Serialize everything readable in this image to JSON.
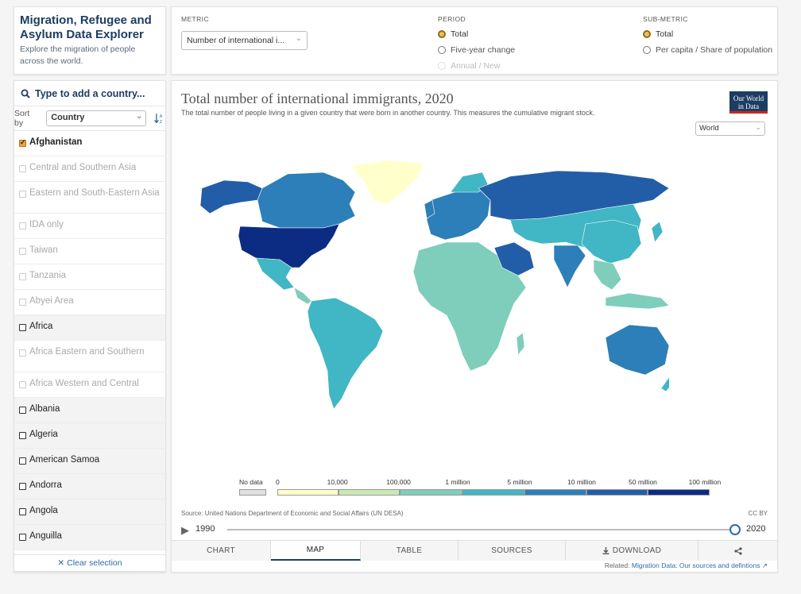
{
  "title_panel": {
    "title": "Migration, Refugee and Asylum Data Explorer",
    "description": "Explore the migration of people across the world."
  },
  "controls": {
    "metric_label": "METRIC",
    "metric_value": "Number of international i...",
    "period_label": "PERIOD",
    "period_options": [
      "Total",
      "Five-year change",
      "Annual / New"
    ],
    "submetric_label": "SUB-METRIC",
    "submetric_options": [
      "Total",
      "Per capita / Share of population"
    ]
  },
  "sidebar": {
    "search_placeholder": "Type to add a country...",
    "sort_label": "Sort by",
    "sort_value": "Country",
    "entities": [
      {
        "label": "Afghanistan",
        "state": "sel"
      },
      {
        "label": "Central and Southern Asia",
        "state": "dim"
      },
      {
        "label": "Eastern and South-Eastern Asia",
        "state": "dim"
      },
      {
        "label": "IDA only",
        "state": "dim"
      },
      {
        "label": "Taiwan",
        "state": "dim"
      },
      {
        "label": "Tanzania",
        "state": "dim"
      },
      {
        "label": "Abyei Area",
        "state": "dim"
      },
      {
        "label": "Africa",
        "state": "grey"
      },
      {
        "label": "Africa Eastern and Southern",
        "state": "dim"
      },
      {
        "label": "Africa Western and Central",
        "state": "dim"
      },
      {
        "label": "Albania",
        "state": "grey"
      },
      {
        "label": "Algeria",
        "state": "grey"
      },
      {
        "label": "American Samoa",
        "state": "grey"
      },
      {
        "label": "Andorra",
        "state": "grey"
      },
      {
        "label": "Angola",
        "state": "grey"
      },
      {
        "label": "Anguilla",
        "state": "grey"
      }
    ],
    "clear_label": "Clear selection"
  },
  "chart": {
    "title": "Total number of international immigrants, 2020",
    "subtitle": "The total number of people living in a given country that were born in another country. This measures the cumulative migrant stock.",
    "logo": "Our World in Data",
    "region": "World",
    "source": "Source: United Nations Department of Economic and Social Affairs (UN DESA)",
    "license": "CC BY",
    "timeline_start": "1990",
    "timeline_end": "2020",
    "legend_nodata": "No data",
    "legend_ticks": [
      "0",
      "10,000",
      "100,000",
      "1 million",
      "5 million",
      "10 million",
      "50 million",
      "100 million"
    ],
    "legend_colors": [
      "#ffffcc",
      "#c7e9b4",
      "#7fcdbb",
      "#41b6c4",
      "#2c7fb8",
      "#225ea8",
      "#0c2c84"
    ],
    "nodata_color": "#e0e0e0",
    "tabs": [
      "CHART",
      "MAP",
      "TABLE",
      "SOURCES",
      "DOWNLOAD",
      ""
    ],
    "active_tab": "MAP",
    "related_label": "Related:",
    "related_link": "Migration Data: Our sources and defintions"
  },
  "map_colors": {
    "usa": "#0c2c84",
    "canada": "#2c7fb8",
    "alaska": "#225ea8",
    "greenland": "#ffffcc",
    "russia": "#225ea8",
    "europe": "#2c7fb8",
    "africa": "#7fcdbb",
    "saudi": "#225ea8",
    "asia": "#41b6c4",
    "india": "#2c7fb8",
    "china": "#41b6c4",
    "southamerica": "#41b6c4",
    "australia": "#2c7fb8",
    "mexico": "#41b6c4",
    "sea": "#7fcdbb"
  }
}
